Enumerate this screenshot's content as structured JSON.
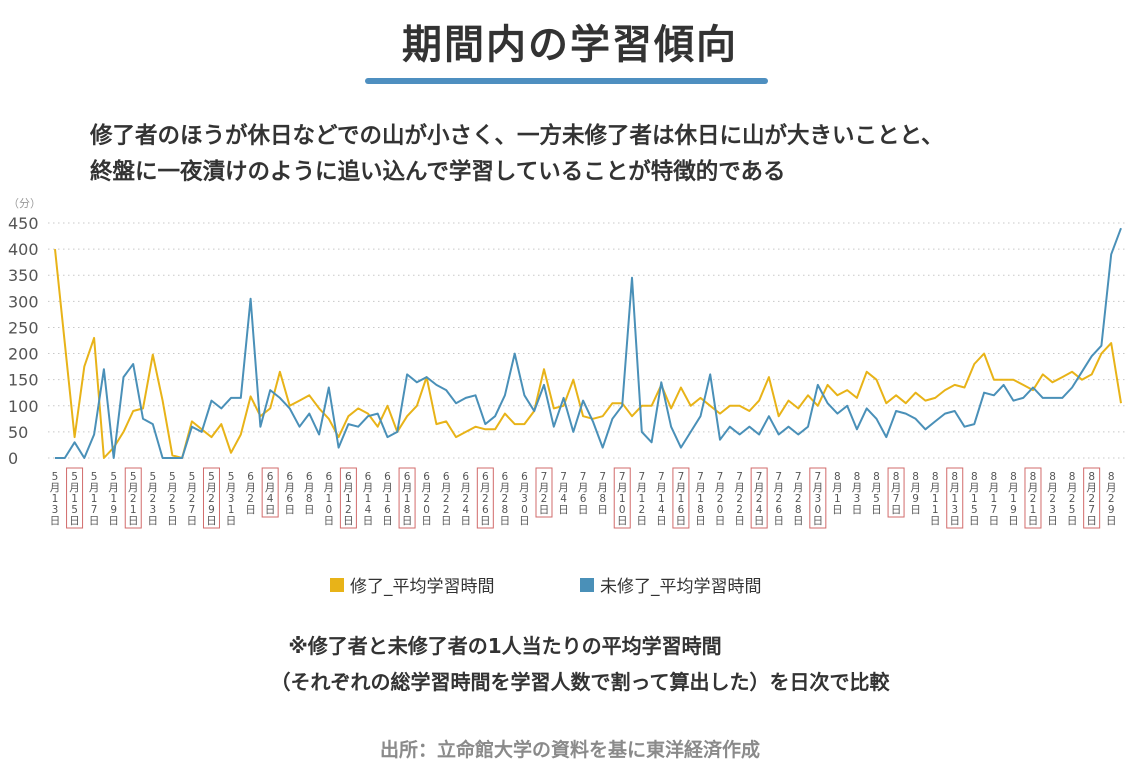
{
  "title": "期間内の学習傾向",
  "description": [
    "修了者のほうが休日などでの山が小さく、一方未修了者は休日に山が大きいことと、",
    "終盤に一夜漬けのように追い込んで学習していることが特徴的である"
  ],
  "note": [
    "※修了者と未修了者の1人当たりの平均学習時間",
    "（それぞれの総学習時間を学習人数で割って算出した）を日次で比較"
  ],
  "source": "出所：立命館大学の資料を基に東洋経済作成",
  "chart_data": {
    "type": "line",
    "ylabel": "（分）",
    "ylim": [
      0,
      450
    ],
    "yticks": [
      0,
      50,
      100,
      150,
      200,
      250,
      300,
      350,
      400,
      450
    ],
    "grid": true,
    "legend_position": "bottom",
    "categories": [
      "5月13日",
      "5月14日",
      "5月15日",
      "5月16日",
      "5月17日",
      "5月18日",
      "5月19日",
      "5月20日",
      "5月21日",
      "5月22日",
      "5月23日",
      "5月24日",
      "5月25日",
      "5月26日",
      "5月27日",
      "5月28日",
      "5月29日",
      "5月30日",
      "5月31日",
      "6月1日",
      "6月2日",
      "6月3日",
      "6月4日",
      "6月5日",
      "6月6日",
      "6月7日",
      "6月8日",
      "6月9日",
      "6月10日",
      "6月11日",
      "6月12日",
      "6月13日",
      "6月14日",
      "6月15日",
      "6月16日",
      "6月17日",
      "6月18日",
      "6月19日",
      "6月20日",
      "6月21日",
      "6月22日",
      "6月23日",
      "6月24日",
      "6月25日",
      "6月26日",
      "6月27日",
      "6月28日",
      "6月29日",
      "6月30日",
      "7月1日",
      "7月2日",
      "7月3日",
      "7月4日",
      "7月5日",
      "7月6日",
      "7月7日",
      "7月8日",
      "7月9日",
      "7月10日",
      "7月11日",
      "7月12日",
      "7月13日",
      "7月14日",
      "7月15日",
      "7月16日",
      "7月17日",
      "7月18日",
      "7月19日",
      "7月20日",
      "7月21日",
      "7月22日",
      "7月23日",
      "7月24日",
      "7月25日",
      "7月26日",
      "7月27日",
      "7月28日",
      "7月29日",
      "7月30日",
      "7月31日",
      "8月1日",
      "8月2日",
      "8月3日",
      "8月4日",
      "8月5日",
      "8月6日",
      "8月7日",
      "8月8日",
      "8月9日",
      "8月10日",
      "8月11日",
      "8月12日",
      "8月13日",
      "8月14日",
      "8月15日",
      "8月16日",
      "8月17日",
      "8月18日",
      "8月19日",
      "8月20日",
      "8月21日",
      "8月22日",
      "8月23日",
      "8月24日",
      "8月25日",
      "8月26日",
      "8月27日",
      "8月28日",
      "8月29日",
      "8月30日"
    ],
    "x_tick_labels": [
      {
        "month": "5",
        "day": "13",
        "boxed": false
      },
      {
        "month": "5",
        "day": "15",
        "boxed": true
      },
      {
        "month": "5",
        "day": "17",
        "boxed": false
      },
      {
        "month": "5",
        "day": "19",
        "boxed": false
      },
      {
        "month": "5",
        "day": "21",
        "boxed": true
      },
      {
        "month": "5",
        "day": "23",
        "boxed": false
      },
      {
        "month": "5",
        "day": "25",
        "boxed": false
      },
      {
        "month": "5",
        "day": "27",
        "boxed": false
      },
      {
        "month": "5",
        "day": "29",
        "boxed": true
      },
      {
        "month": "5",
        "day": "31",
        "boxed": false
      },
      {
        "month": "6",
        "day": "2",
        "boxed": false
      },
      {
        "month": "6",
        "day": "4",
        "boxed": true
      },
      {
        "month": "6",
        "day": "6",
        "boxed": false
      },
      {
        "month": "6",
        "day": "8",
        "boxed": false
      },
      {
        "month": "6",
        "day": "10",
        "boxed": false
      },
      {
        "month": "6",
        "day": "12",
        "boxed": true
      },
      {
        "month": "6",
        "day": "14",
        "boxed": false
      },
      {
        "month": "6",
        "day": "16",
        "boxed": false
      },
      {
        "month": "6",
        "day": "18",
        "boxed": true
      },
      {
        "month": "6",
        "day": "20",
        "boxed": false
      },
      {
        "month": "6",
        "day": "22",
        "boxed": false
      },
      {
        "month": "6",
        "day": "24",
        "boxed": false
      },
      {
        "month": "6",
        "day": "26",
        "boxed": true
      },
      {
        "month": "6",
        "day": "28",
        "boxed": false
      },
      {
        "month": "6",
        "day": "30",
        "boxed": false
      },
      {
        "month": "7",
        "day": "2",
        "boxed": true
      },
      {
        "month": "7",
        "day": "4",
        "boxed": false
      },
      {
        "month": "7",
        "day": "6",
        "boxed": false
      },
      {
        "month": "7",
        "day": "8",
        "boxed": false
      },
      {
        "month": "7",
        "day": "10",
        "boxed": true
      },
      {
        "month": "7",
        "day": "12",
        "boxed": false
      },
      {
        "month": "7",
        "day": "14",
        "boxed": false
      },
      {
        "month": "7",
        "day": "16",
        "boxed": true
      },
      {
        "month": "7",
        "day": "18",
        "boxed": false
      },
      {
        "month": "7",
        "day": "20",
        "boxed": false
      },
      {
        "month": "7",
        "day": "22",
        "boxed": false
      },
      {
        "month": "7",
        "day": "24",
        "boxed": true
      },
      {
        "month": "7",
        "day": "26",
        "boxed": false
      },
      {
        "month": "7",
        "day": "28",
        "boxed": false
      },
      {
        "month": "7",
        "day": "30",
        "boxed": true
      },
      {
        "month": "8",
        "day": "1",
        "boxed": false
      },
      {
        "month": "8",
        "day": "3",
        "boxed": false
      },
      {
        "month": "8",
        "day": "5",
        "boxed": false
      },
      {
        "month": "8",
        "day": "7",
        "boxed": true
      },
      {
        "month": "8",
        "day": "9",
        "boxed": false
      },
      {
        "month": "8",
        "day": "11",
        "boxed": false
      },
      {
        "month": "8",
        "day": "13",
        "boxed": true
      },
      {
        "month": "8",
        "day": "15",
        "boxed": false
      },
      {
        "month": "8",
        "day": "17",
        "boxed": false
      },
      {
        "month": "8",
        "day": "19",
        "boxed": false
      },
      {
        "month": "8",
        "day": "21",
        "boxed": true
      },
      {
        "month": "8",
        "day": "23",
        "boxed": false
      },
      {
        "month": "8",
        "day": "25",
        "boxed": false
      },
      {
        "month": "8",
        "day": "27",
        "boxed": true
      },
      {
        "month": "8",
        "day": "29",
        "boxed": false
      }
    ],
    "day_suffix": "日",
    "month_suffix": "月",
    "series": [
      {
        "name": "修了_平均学習時間",
        "color": "#e8b318",
        "values": [
          400,
          220,
          40,
          175,
          230,
          0,
          20,
          50,
          90,
          95,
          198,
          110,
          5,
          0,
          70,
          55,
          40,
          65,
          10,
          45,
          118,
          80,
          95,
          165,
          100,
          110,
          120,
          95,
          75,
          40,
          80,
          95,
          85,
          60,
          100,
          50,
          80,
          100,
          155,
          65,
          70,
          40,
          50,
          60,
          55,
          55,
          85,
          65,
          65,
          90,
          170,
          95,
          100,
          150,
          80,
          75,
          80,
          105,
          105,
          80,
          100,
          100,
          140,
          95,
          135,
          100,
          115,
          100,
          85,
          100,
          100,
          90,
          110,
          155,
          80,
          110,
          95,
          120,
          100,
          140,
          120,
          130,
          115,
          165,
          150,
          105,
          120,
          105,
          125,
          110,
          115,
          130,
          140,
          135,
          180,
          200,
          150,
          150,
          150,
          140,
          130,
          160,
          145,
          155,
          165,
          150,
          160,
          200,
          220,
          105
        ]
      },
      {
        "name": "未修了_平均学習時間",
        "color": "#4a90b8",
        "values": [
          0,
          0,
          30,
          0,
          45,
          170,
          0,
          155,
          180,
          75,
          65,
          0,
          0,
          0,
          60,
          50,
          110,
          95,
          115,
          115,
          305,
          60,
          130,
          115,
          95,
          60,
          85,
          45,
          135,
          20,
          65,
          60,
          80,
          85,
          40,
          50,
          160,
          145,
          155,
          140,
          130,
          105,
          115,
          120,
          65,
          80,
          120,
          200,
          120,
          90,
          140,
          60,
          115,
          50,
          110,
          70,
          20,
          75,
          100,
          345,
          50,
          30,
          145,
          60,
          20,
          50,
          80,
          160,
          35,
          60,
          45,
          60,
          45,
          80,
          45,
          60,
          45,
          60,
          140,
          105,
          85,
          100,
          55,
          95,
          75,
          40,
          90,
          85,
          75,
          55,
          70,
          85,
          90,
          60,
          65,
          125,
          120,
          140,
          110,
          115,
          135,
          115,
          115,
          115,
          135,
          165,
          195,
          215,
          390,
          440
        ]
      }
    ]
  }
}
